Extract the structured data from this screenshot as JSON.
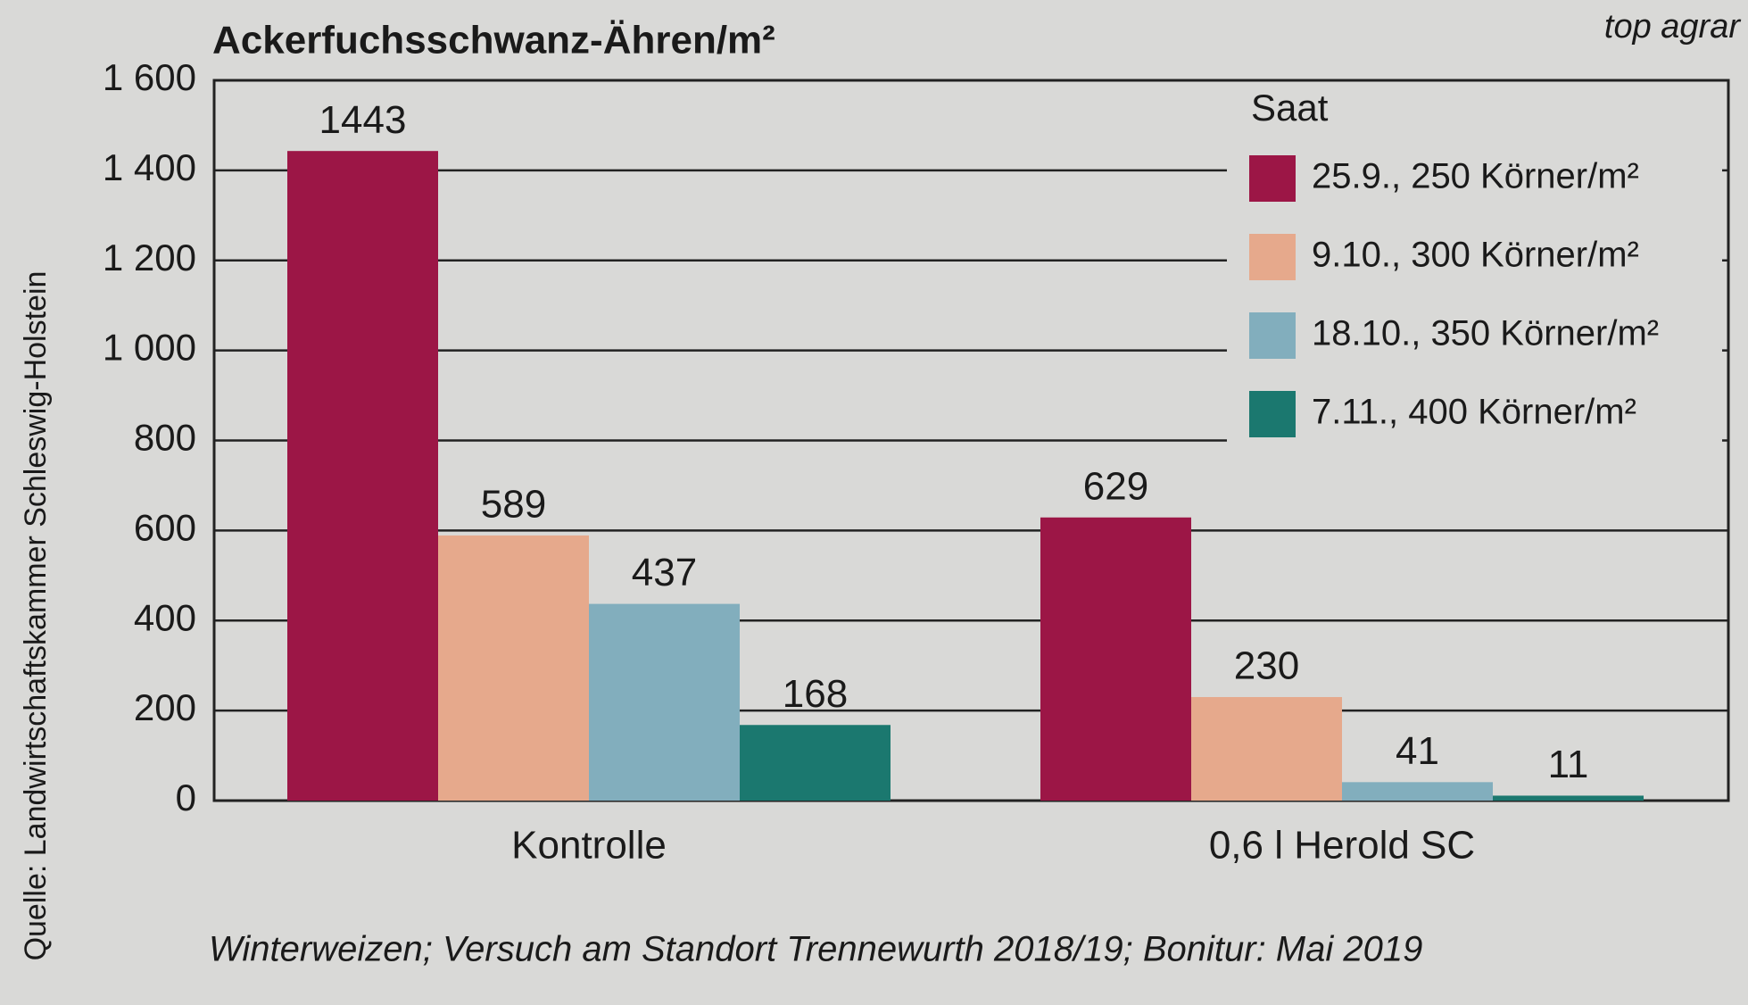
{
  "chart_data": {
    "type": "bar",
    "title": "Ackerfuchsschwanz-Ähren/m²",
    "publisher": "top agrar",
    "source": "Quelle: Landwirtschaftskammer Schleswig-Holstein",
    "footnote": "Winterweizen; Versuch am Standort Trennewurth 2018/19; Bonitur: Mai 2019",
    "legend_title": "Saat",
    "categories": [
      "Kontrolle",
      "0,6 l Herold SC"
    ],
    "series": [
      {
        "name": "25.9., 250 Körner/m²",
        "color": "#9c1646",
        "values": [
          1443,
          629
        ]
      },
      {
        "name": "9.10., 300 Körner/m²",
        "color": "#e6a98c",
        "values": [
          589,
          230
        ]
      },
      {
        "name": "18.10., 350 Körner/m²",
        "color": "#82aebd",
        "values": [
          437,
          41
        ]
      },
      {
        "name": "7.11., 400 Körner/m²",
        "color": "#1b786f",
        "values": [
          168,
          11
        ]
      }
    ],
    "ylim": [
      0,
      1600
    ],
    "yticks": [
      0,
      200,
      400,
      600,
      800,
      {
        "value": 1000,
        "label": "1 000"
      },
      {
        "value": 1200,
        "label": "1 200"
      },
      {
        "value": 1400,
        "label": "1 400"
      },
      {
        "value": 1600,
        "label": "1 600"
      }
    ],
    "grid": true
  }
}
